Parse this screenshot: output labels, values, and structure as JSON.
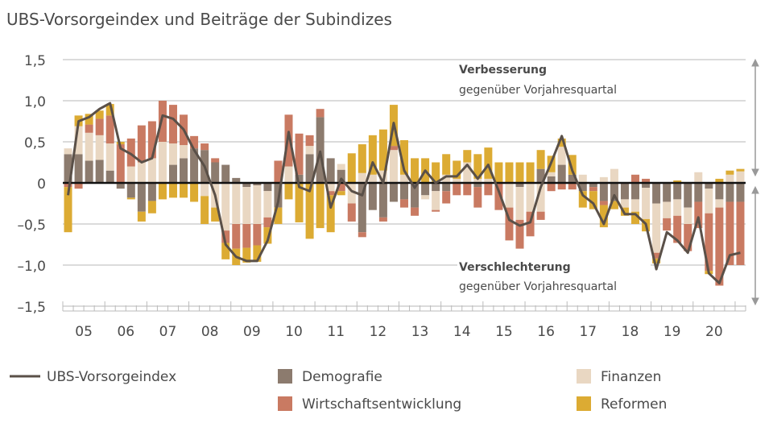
{
  "chart_data": {
    "type": "bar",
    "stacked": true,
    "title": "UBS-Vorsorgeindex und Beiträge der Subindizes",
    "ylim": [
      -1.5,
      1.5
    ],
    "y_ticks": [
      1.5,
      1.0,
      0.5,
      0,
      -0.5,
      -1.0,
      -1.5
    ],
    "y_tick_labels": [
      "1,5",
      "1,0",
      "0,5",
      "0",
      "–0,5",
      "–1,0",
      "–1,5"
    ],
    "x_labels": [
      "05",
      "06",
      "07",
      "08",
      "09",
      "10",
      "11",
      "12",
      "13",
      "14",
      "15",
      "16",
      "17",
      "18",
      "19",
      "20"
    ],
    "grid": true,
    "legend_position": "bottom",
    "annotations": {
      "up_title": "Verbesserung",
      "up_sub": "gegenüber Vorjahresquartal",
      "down_title": "Verschlechterung",
      "down_sub": "gegenüber Vorjahresquartal"
    },
    "colors": {
      "Demografie": "#8c7b6e",
      "Finanzen": "#e9d7c2",
      "Wirtschaftsentwicklung": "#c97a62",
      "Reformen": "#dcab33",
      "UBS-Vorsorgeindex": "#5a5048"
    },
    "series": [
      {
        "name": "Demografie",
        "values": [
          0.35,
          0.35,
          0.27,
          0.28,
          0.15,
          -0.07,
          -0.18,
          -0.35,
          -0.22,
          0,
          0.22,
          0.3,
          0.42,
          0.4,
          0.25,
          0.22,
          0.06,
          -0.05,
          -0.03,
          -0.1,
          -0.3,
          0,
          0.1,
          0.35,
          0.8,
          0.3,
          0.16,
          0,
          -0.6,
          -0.33,
          -0.42,
          -0.23,
          -0.2,
          -0.3,
          -0.15,
          -0.1,
          -0.1,
          0,
          0,
          -0.05,
          0,
          0,
          0,
          -0.05,
          0,
          0.17,
          0.08,
          0.22,
          0.1,
          -0.1,
          -0.05,
          -0.22,
          -0.22,
          -0.2,
          -0.2,
          -0.06,
          -0.25,
          -0.23,
          -0.2,
          -0.3,
          -0.23,
          -0.07,
          -0.2,
          -0.23,
          -0.23
        ]
      },
      {
        "name": "Finanzen",
        "values": [
          0.07,
          0.34,
          0.34,
          0.3,
          0.33,
          0,
          0.2,
          0.25,
          0.3,
          0.5,
          0.26,
          0.16,
          0,
          -0.16,
          -0.3,
          -0.58,
          -0.5,
          -0.45,
          -0.47,
          -0.32,
          0,
          0.2,
          0,
          0.1,
          0,
          -0.1,
          0.07,
          -0.25,
          0.12,
          0.1,
          0.15,
          0.4,
          0.1,
          0,
          -0.05,
          -0.23,
          0.1,
          0.05,
          0.25,
          0.05,
          0.05,
          0,
          -0.3,
          -0.4,
          -0.35,
          -0.35,
          0.05,
          0.22,
          0,
          0.1,
          0,
          0.07,
          0.17,
          -0.1,
          -0.15,
          -0.38,
          -0.6,
          -0.2,
          -0.2,
          -0.2,
          0.13,
          -0.3,
          -0.1,
          0.1,
          0.14
        ]
      },
      {
        "name": "Wirtschaftsentwicklung",
        "values": [
          -0.05,
          -0.07,
          0.1,
          0.2,
          0.34,
          0.47,
          0.34,
          0.45,
          0.45,
          0.5,
          0.47,
          0.37,
          0.15,
          0.08,
          0.05,
          -0.15,
          -0.3,
          -0.29,
          -0.26,
          -0.12,
          0.27,
          0.63,
          0.5,
          0.13,
          0.1,
          -0.05,
          -0.1,
          -0.22,
          -0.06,
          0,
          -0.05,
          0.05,
          -0.1,
          -0.1,
          0,
          -0.02,
          -0.15,
          -0.15,
          -0.15,
          -0.25,
          -0.15,
          -0.33,
          -0.4,
          -0.35,
          -0.3,
          -0.1,
          -0.1,
          -0.08,
          -0.08,
          0,
          -0.05,
          -0.05,
          0,
          0,
          0.1,
          0.05,
          -0.07,
          -0.15,
          -0.33,
          -0.33,
          -0.32,
          -0.7,
          -0.95,
          -0.77,
          -0.77
        ]
      },
      {
        "name": "Reformen",
        "values": [
          -0.55,
          0.13,
          0.13,
          0.1,
          0.14,
          0.03,
          -0.02,
          -0.12,
          -0.15,
          -0.2,
          -0.18,
          -0.18,
          -0.23,
          -0.34,
          -0.17,
          -0.2,
          -0.2,
          -0.18,
          -0.2,
          -0.2,
          -0.2,
          -0.2,
          -0.48,
          -0.68,
          -0.55,
          -0.45,
          -0.05,
          0.36,
          0.35,
          0.48,
          0.5,
          0.5,
          0.42,
          0.3,
          0.3,
          0.25,
          0.25,
          0.22,
          0.15,
          0.3,
          0.38,
          0.25,
          0.25,
          0.25,
          0.25,
          0.23,
          0.2,
          0.1,
          0.24,
          -0.2,
          -0.22,
          -0.27,
          -0.1,
          -0.1,
          -0.15,
          -0.15,
          -0.06,
          0,
          0.03,
          0,
          0,
          -0.04,
          0.05,
          0.05,
          0.03
        ]
      },
      {
        "name": "UBS-Vorsorgeindex",
        "type": "line",
        "values": [
          -0.15,
          0.75,
          0.8,
          0.9,
          0.97,
          0.42,
          0.35,
          0.25,
          0.3,
          0.82,
          0.78,
          0.65,
          0.4,
          0.2,
          -0.15,
          -0.75,
          -0.9,
          -0.95,
          -0.95,
          -0.7,
          -0.23,
          0.62,
          -0.05,
          -0.1,
          0.38,
          -0.3,
          0.05,
          -0.1,
          -0.15,
          0.25,
          0.0,
          0.73,
          0.15,
          -0.06,
          0.15,
          0.0,
          0.08,
          0.08,
          0.22,
          0.05,
          0.22,
          -0.1,
          -0.45,
          -0.52,
          -0.48,
          -0.05,
          0.25,
          0.57,
          0.15,
          -0.15,
          -0.25,
          -0.5,
          -0.15,
          -0.38,
          -0.38,
          -0.5,
          -1.05,
          -0.6,
          -0.7,
          -0.85,
          -0.42,
          -1.1,
          -1.22,
          -0.88,
          -0.85
        ]
      }
    ]
  }
}
